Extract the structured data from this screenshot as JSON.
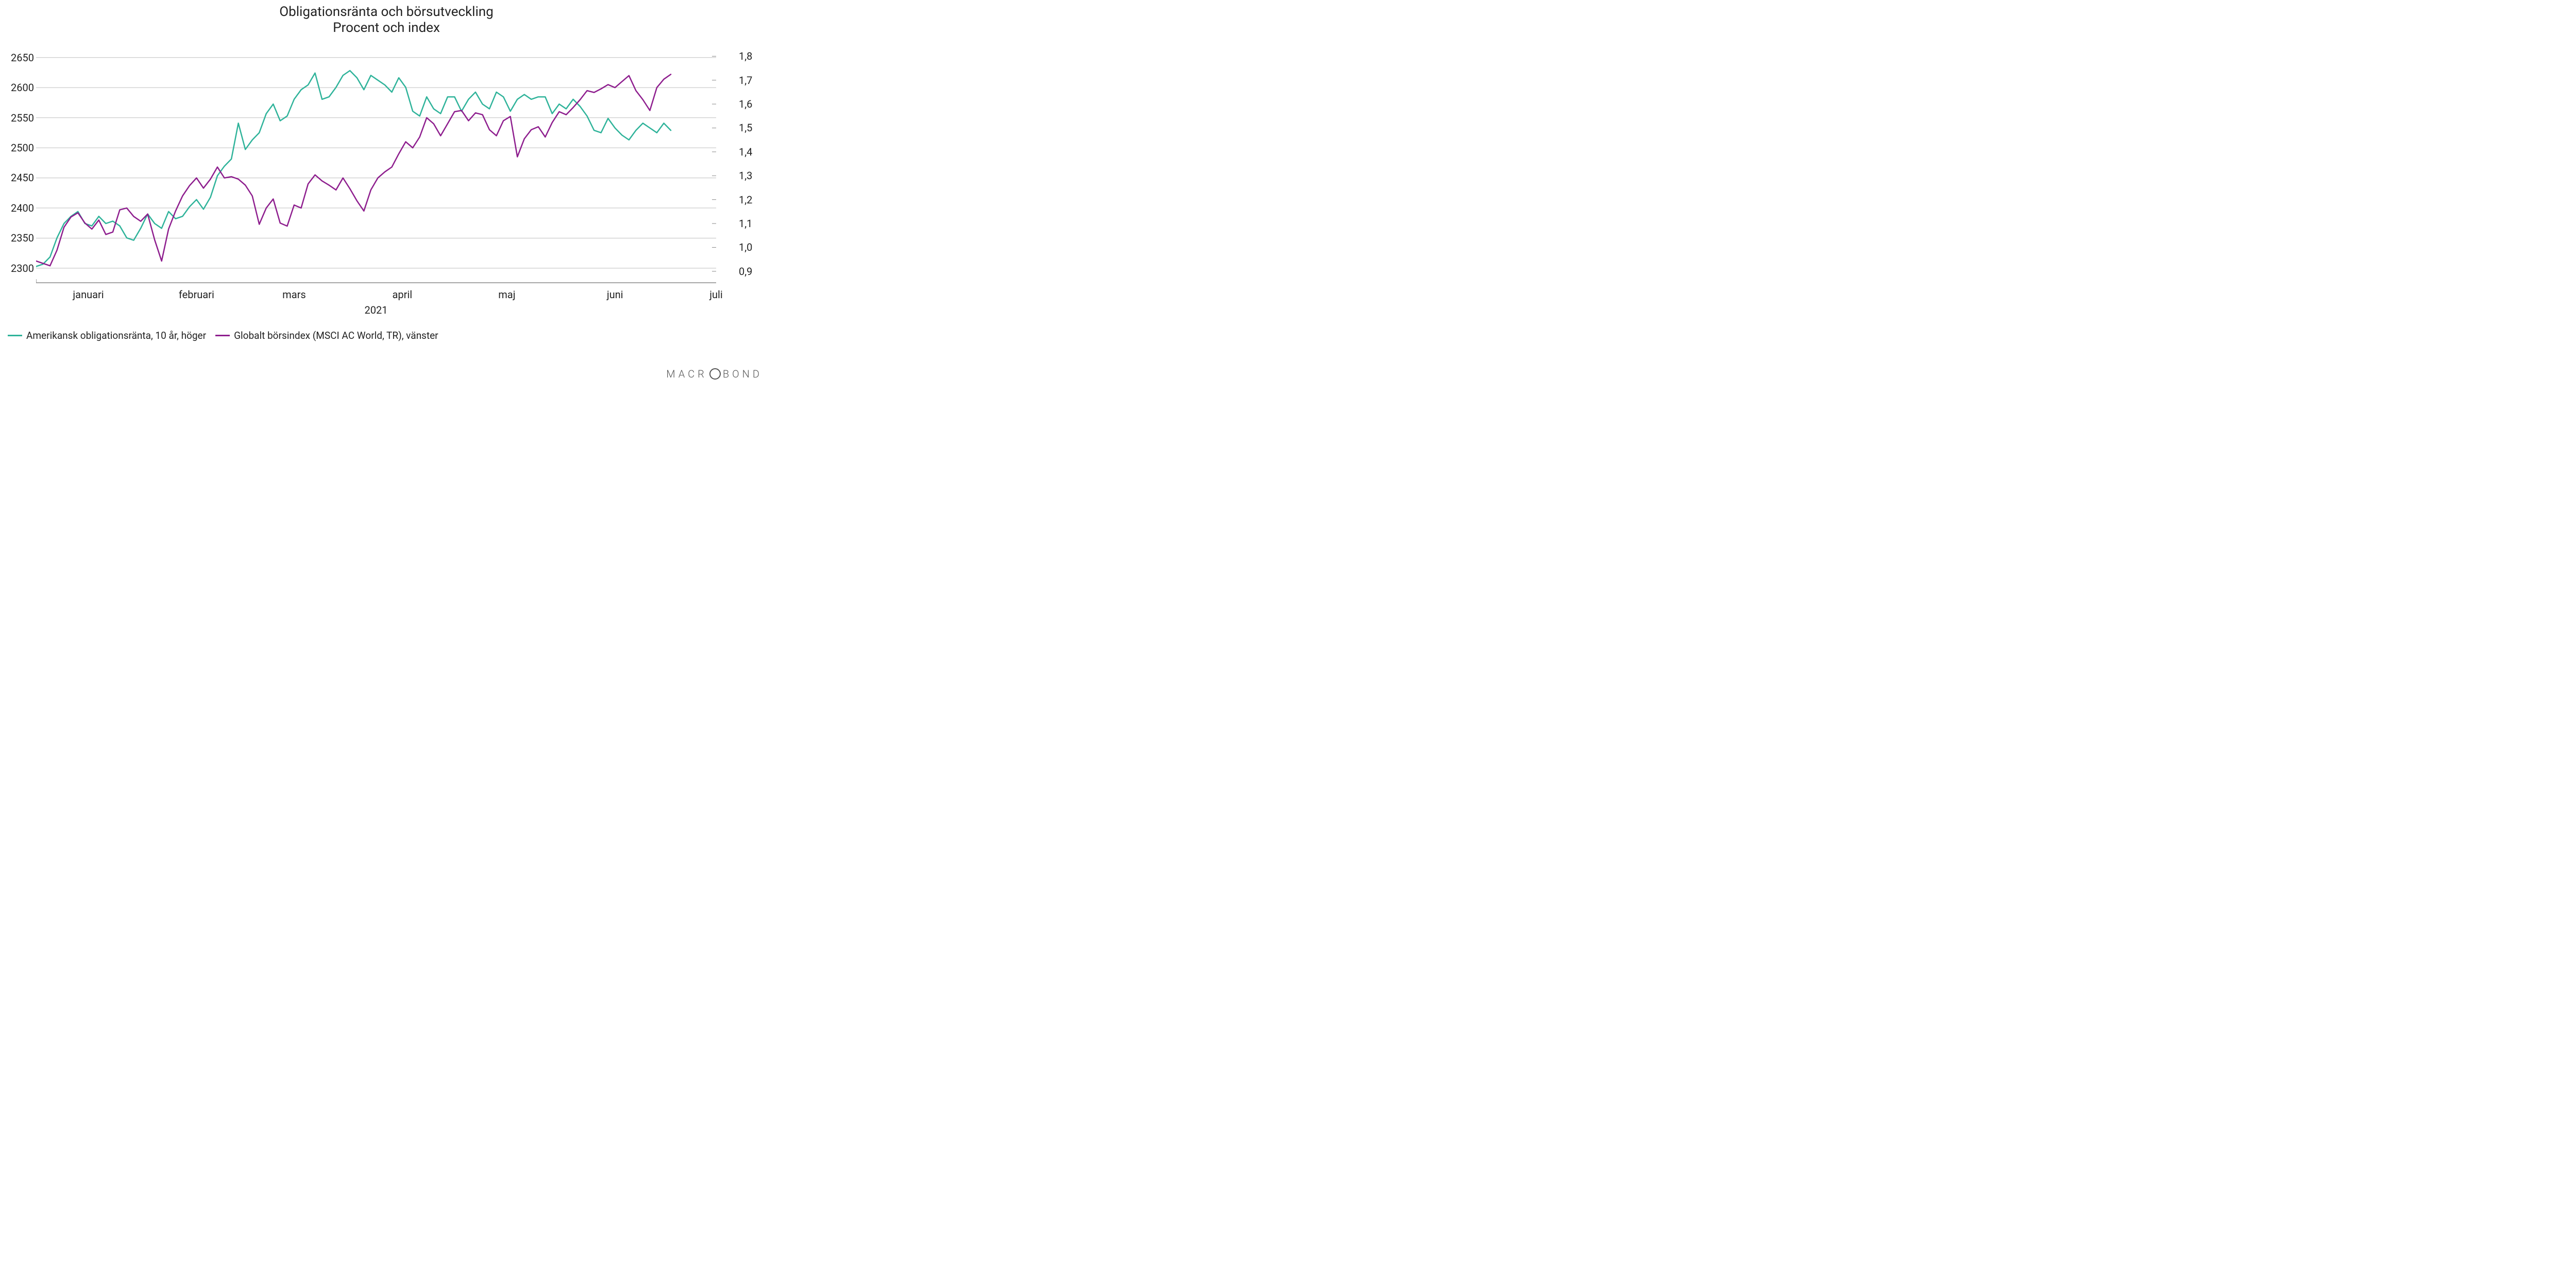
{
  "title": {
    "line1": "Obligationsränta och börsutveckling",
    "line2": "Procent och index",
    "fontsize": 26,
    "color": "#222222"
  },
  "chart": {
    "type": "line",
    "background_color": "#ffffff",
    "grid_color": "#bfbfbf",
    "axis_color": "#888888",
    "line_width": 2.5,
    "x": {
      "domain_days": [
        0,
        195
      ],
      "month_ticks": [
        {
          "day": 15,
          "label": "januari"
        },
        {
          "day": 46,
          "label": "februari"
        },
        {
          "day": 74,
          "label": "mars"
        },
        {
          "day": 105,
          "label": "april"
        },
        {
          "day": 135,
          "label": "maj"
        },
        {
          "day": 166,
          "label": "juni"
        },
        {
          "day": 195,
          "label": "juli"
        }
      ],
      "year_label": "2021",
      "label_fontsize": 20
    },
    "y_left": {
      "min": 2275,
      "max": 2660,
      "ticks": [
        2300,
        2350,
        2400,
        2450,
        2500,
        2550,
        2600,
        2650
      ],
      "label_fontsize": 20
    },
    "y_right": {
      "min": 0.85,
      "max": 1.82,
      "ticks": [
        0.9,
        1.0,
        1.1,
        1.2,
        1.3,
        1.4,
        1.5,
        1.6,
        1.7,
        1.8
      ],
      "tick_labels": [
        "0,9",
        "1,0",
        "1,1",
        "1,2",
        "1,3",
        "1,4",
        "1,5",
        "1,6",
        "1,7",
        "1,8"
      ],
      "label_fontsize": 20
    },
    "series": {
      "bond": {
        "label": "Amerikansk obligationsränta, 10 år, höger",
        "color": "#2fb39a",
        "axis": "right",
        "points": [
          [
            0,
            0.92
          ],
          [
            2,
            0.93
          ],
          [
            4,
            0.96
          ],
          [
            6,
            1.04
          ],
          [
            8,
            1.1
          ],
          [
            10,
            1.13
          ],
          [
            12,
            1.15
          ],
          [
            14,
            1.1
          ],
          [
            16,
            1.09
          ],
          [
            18,
            1.13
          ],
          [
            20,
            1.1
          ],
          [
            22,
            1.11
          ],
          [
            24,
            1.09
          ],
          [
            26,
            1.04
          ],
          [
            28,
            1.03
          ],
          [
            30,
            1.08
          ],
          [
            32,
            1.14
          ],
          [
            34,
            1.1
          ],
          [
            36,
            1.08
          ],
          [
            38,
            1.15
          ],
          [
            40,
            1.12
          ],
          [
            42,
            1.13
          ],
          [
            44,
            1.17
          ],
          [
            46,
            1.2
          ],
          [
            48,
            1.16
          ],
          [
            50,
            1.21
          ],
          [
            52,
            1.3
          ],
          [
            54,
            1.34
          ],
          [
            56,
            1.37
          ],
          [
            58,
            1.52
          ],
          [
            60,
            1.41
          ],
          [
            62,
            1.45
          ],
          [
            64,
            1.48
          ],
          [
            66,
            1.56
          ],
          [
            68,
            1.6
          ],
          [
            70,
            1.53
          ],
          [
            72,
            1.55
          ],
          [
            74,
            1.62
          ],
          [
            76,
            1.66
          ],
          [
            78,
            1.68
          ],
          [
            80,
            1.73
          ],
          [
            82,
            1.62
          ],
          [
            84,
            1.63
          ],
          [
            86,
            1.67
          ],
          [
            88,
            1.72
          ],
          [
            90,
            1.74
          ],
          [
            92,
            1.71
          ],
          [
            94,
            1.66
          ],
          [
            96,
            1.72
          ],
          [
            98,
            1.7
          ],
          [
            100,
            1.68
          ],
          [
            102,
            1.65
          ],
          [
            104,
            1.71
          ],
          [
            106,
            1.67
          ],
          [
            108,
            1.57
          ],
          [
            110,
            1.55
          ],
          [
            112,
            1.63
          ],
          [
            114,
            1.58
          ],
          [
            116,
            1.56
          ],
          [
            118,
            1.63
          ],
          [
            120,
            1.63
          ],
          [
            122,
            1.57
          ],
          [
            124,
            1.62
          ],
          [
            126,
            1.65
          ],
          [
            128,
            1.6
          ],
          [
            130,
            1.58
          ],
          [
            132,
            1.65
          ],
          [
            134,
            1.63
          ],
          [
            136,
            1.57
          ],
          [
            138,
            1.62
          ],
          [
            140,
            1.64
          ],
          [
            142,
            1.62
          ],
          [
            144,
            1.63
          ],
          [
            146,
            1.63
          ],
          [
            148,
            1.56
          ],
          [
            150,
            1.6
          ],
          [
            152,
            1.58
          ],
          [
            154,
            1.62
          ],
          [
            156,
            1.59
          ],
          [
            158,
            1.55
          ],
          [
            160,
            1.49
          ],
          [
            162,
            1.48
          ],
          [
            164,
            1.54
          ],
          [
            166,
            1.5
          ],
          [
            168,
            1.47
          ],
          [
            170,
            1.45
          ],
          [
            172,
            1.49
          ],
          [
            174,
            1.52
          ],
          [
            176,
            1.5
          ],
          [
            178,
            1.48
          ],
          [
            180,
            1.52
          ],
          [
            182,
            1.49
          ]
        ]
      },
      "msci": {
        "label": "Globalt börsindex (MSCI AC World, TR), vänster",
        "color": "#8e1e8e",
        "axis": "left",
        "points": [
          [
            0,
            2312
          ],
          [
            2,
            2308
          ],
          [
            4,
            2304
          ],
          [
            6,
            2330
          ],
          [
            8,
            2368
          ],
          [
            10,
            2385
          ],
          [
            12,
            2392
          ],
          [
            14,
            2375
          ],
          [
            16,
            2365
          ],
          [
            18,
            2380
          ],
          [
            20,
            2356
          ],
          [
            22,
            2360
          ],
          [
            24,
            2397
          ],
          [
            26,
            2400
          ],
          [
            28,
            2386
          ],
          [
            30,
            2378
          ],
          [
            32,
            2390
          ],
          [
            34,
            2347
          ],
          [
            36,
            2312
          ],
          [
            38,
            2365
          ],
          [
            40,
            2395
          ],
          [
            42,
            2420
          ],
          [
            44,
            2437
          ],
          [
            46,
            2450
          ],
          [
            48,
            2433
          ],
          [
            50,
            2448
          ],
          [
            52,
            2468
          ],
          [
            54,
            2450
          ],
          [
            56,
            2452
          ],
          [
            58,
            2448
          ],
          [
            60,
            2438
          ],
          [
            62,
            2420
          ],
          [
            64,
            2373
          ],
          [
            66,
            2400
          ],
          [
            68,
            2415
          ],
          [
            70,
            2375
          ],
          [
            72,
            2370
          ],
          [
            74,
            2405
          ],
          [
            76,
            2400
          ],
          [
            78,
            2440
          ],
          [
            80,
            2455
          ],
          [
            82,
            2445
          ],
          [
            84,
            2438
          ],
          [
            86,
            2430
          ],
          [
            88,
            2450
          ],
          [
            90,
            2432
          ],
          [
            92,
            2412
          ],
          [
            94,
            2395
          ],
          [
            96,
            2430
          ],
          [
            98,
            2450
          ],
          [
            100,
            2460
          ],
          [
            102,
            2468
          ],
          [
            104,
            2490
          ],
          [
            106,
            2510
          ],
          [
            108,
            2500
          ],
          [
            110,
            2518
          ],
          [
            112,
            2550
          ],
          [
            114,
            2540
          ],
          [
            116,
            2520
          ],
          [
            118,
            2540
          ],
          [
            120,
            2560
          ],
          [
            122,
            2562
          ],
          [
            124,
            2545
          ],
          [
            126,
            2558
          ],
          [
            128,
            2555
          ],
          [
            130,
            2530
          ],
          [
            132,
            2520
          ],
          [
            134,
            2545
          ],
          [
            136,
            2552
          ],
          [
            138,
            2485
          ],
          [
            140,
            2515
          ],
          [
            142,
            2530
          ],
          [
            144,
            2535
          ],
          [
            146,
            2518
          ],
          [
            148,
            2542
          ],
          [
            150,
            2560
          ],
          [
            152,
            2555
          ],
          [
            154,
            2567
          ],
          [
            156,
            2580
          ],
          [
            158,
            2595
          ],
          [
            160,
            2592
          ],
          [
            162,
            2598
          ],
          [
            164,
            2605
          ],
          [
            166,
            2600
          ],
          [
            168,
            2610
          ],
          [
            170,
            2620
          ],
          [
            172,
            2595
          ],
          [
            174,
            2580
          ],
          [
            176,
            2562
          ],
          [
            178,
            2600
          ],
          [
            180,
            2614
          ],
          [
            182,
            2622
          ]
        ]
      }
    }
  },
  "legend": {
    "fontsize": 19,
    "text_color": "#222222"
  },
  "brand": {
    "text_before": "MACR",
    "text_after": "BOND",
    "color": "#555555",
    "letter_spacing": 6
  }
}
